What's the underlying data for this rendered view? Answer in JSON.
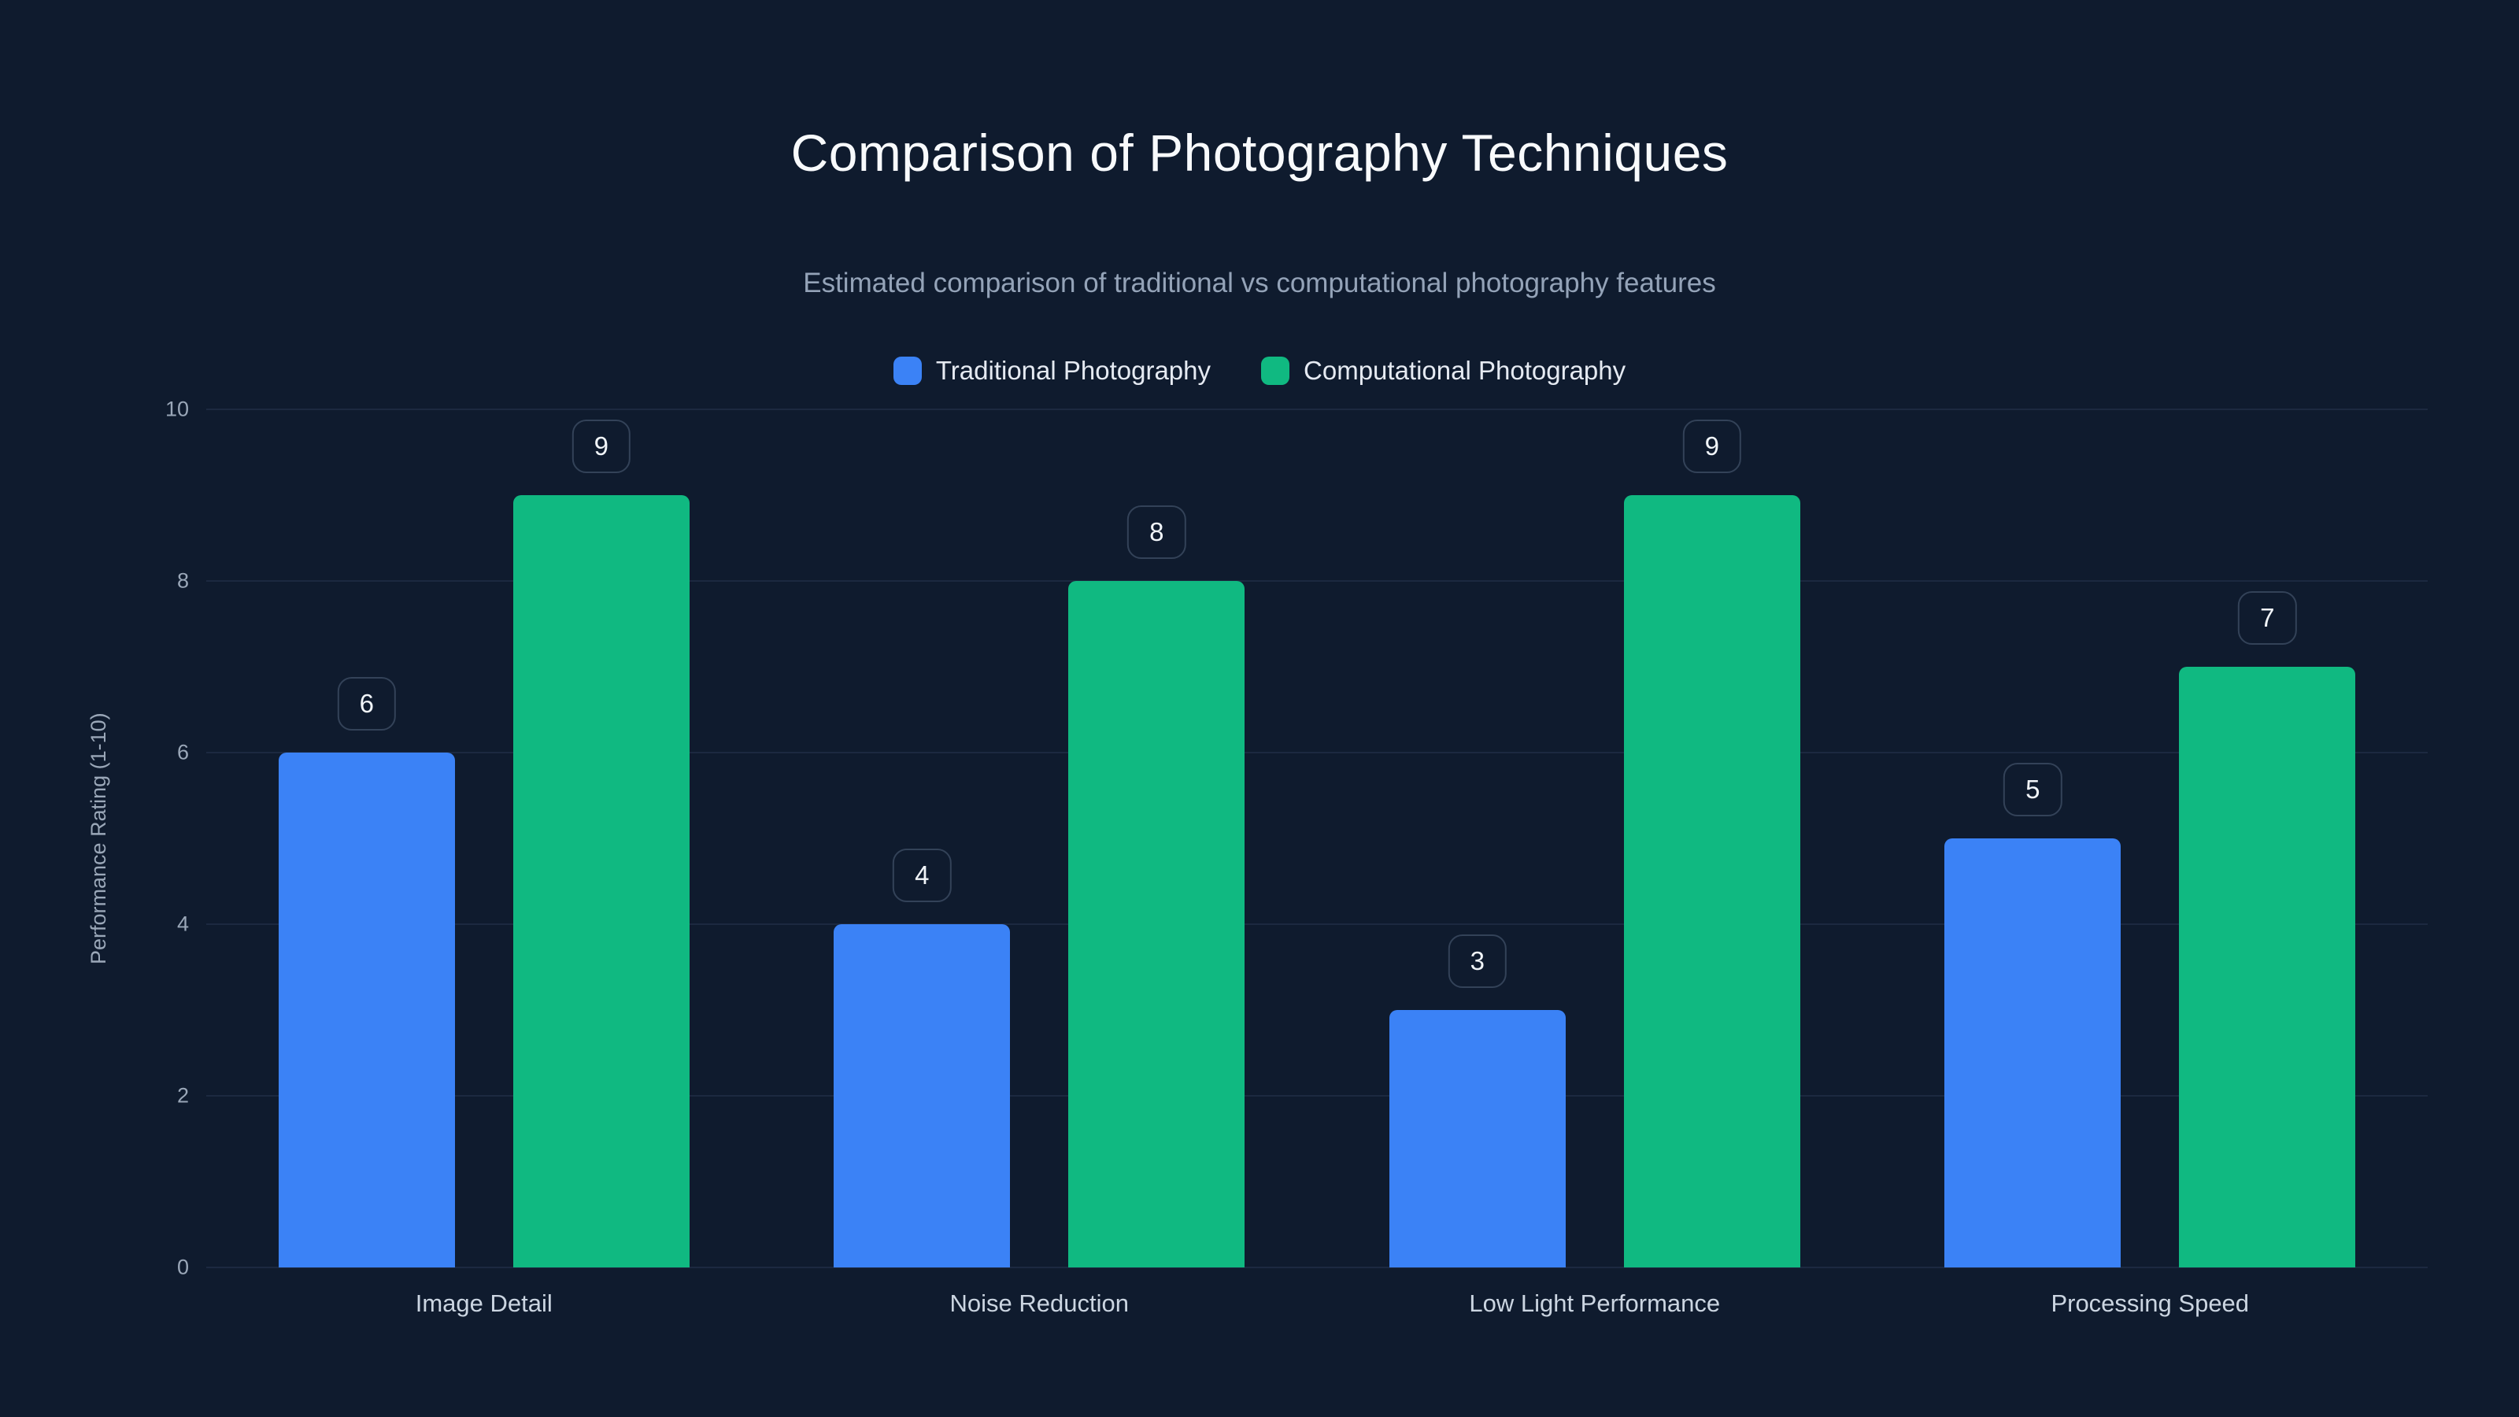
{
  "chart_data": {
    "type": "bar",
    "title": "Comparison of Photography Techniques",
    "subtitle": "Estimated comparison of traditional vs computational photography features",
    "categories": [
      "Image Detail",
      "Noise Reduction",
      "Low Light Performance",
      "Processing Speed"
    ],
    "series": [
      {
        "name": "Traditional Photography",
        "color": "#3b82f6",
        "values": [
          6,
          4,
          3,
          5
        ]
      },
      {
        "name": "Computational Photography",
        "color": "#10b981",
        "values": [
          9,
          8,
          9,
          7
        ]
      }
    ],
    "ylabel": "Performance Rating (1-10)",
    "ylim": [
      0,
      10
    ],
    "yticks": [
      0,
      2,
      4,
      6,
      8,
      10
    ],
    "grid": true,
    "legend_position": "top",
    "value_labels": true
  },
  "colors": {
    "background": "#0f1b2e",
    "grid": "#1c2940",
    "title": "#f8fafc",
    "subtitle": "#94a3b8",
    "axis_text": "#9aa7b8",
    "category_text": "#cbd5e1",
    "badge_border": "#334258"
  }
}
